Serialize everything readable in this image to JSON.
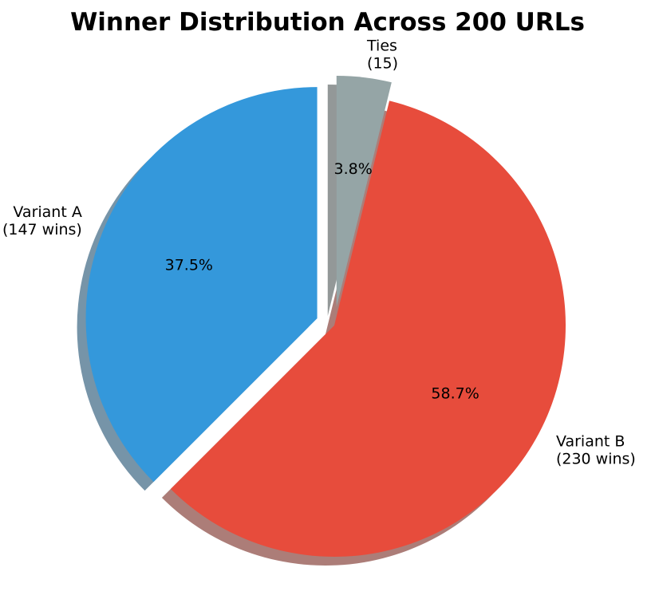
{
  "title": "Winner Distribution Across 200 URLs",
  "chart_data": {
    "type": "pie",
    "title": "Winner Distribution Across 200 URLs",
    "start_angle_deg": 90,
    "direction": "counterclockwise",
    "shadow": true,
    "slices": [
      {
        "label": "Variant A",
        "sublabel": "(147 wins)",
        "value": 147,
        "pct_label": "37.5%",
        "color": "#3498db",
        "exploded": true
      },
      {
        "label": "Variant B",
        "sublabel": "(230 wins)",
        "value": 230,
        "pct_label": "58.7%",
        "color": "#e74c3c",
        "exploded": false
      },
      {
        "label": "Ties",
        "sublabel": "(15)",
        "value": 15,
        "pct_label": "3.8%",
        "color": "#95a5a6",
        "exploded": true
      }
    ]
  }
}
